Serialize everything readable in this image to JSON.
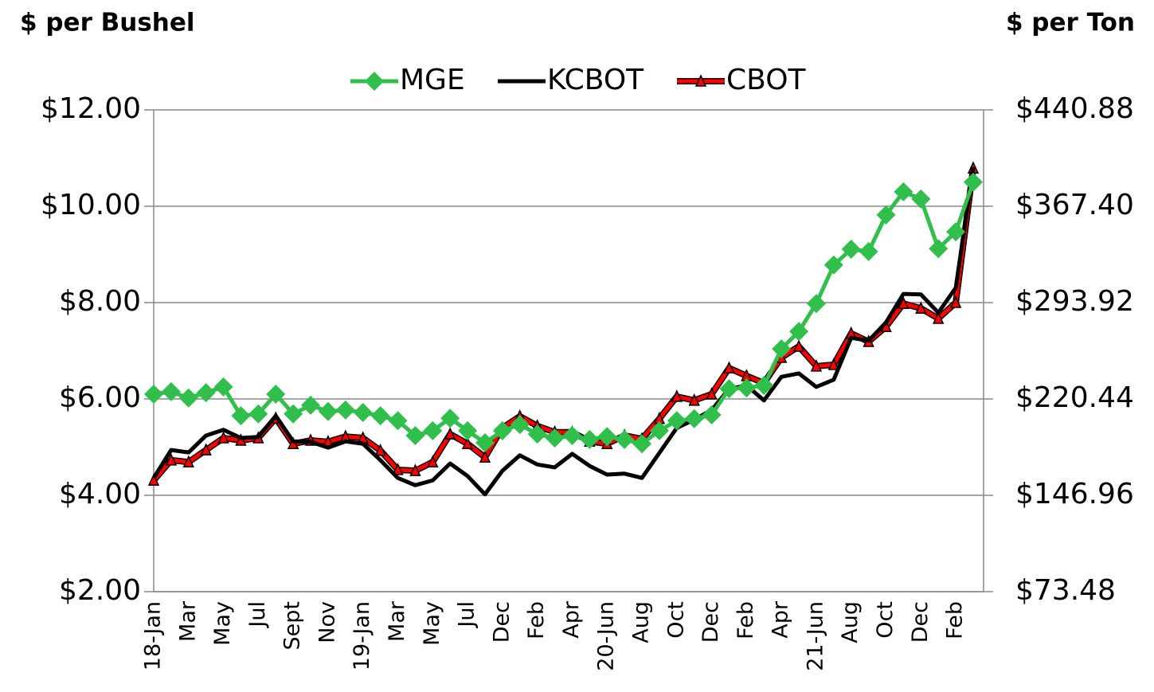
{
  "chart_data": {
    "type": "line",
    "y_label": "$ per Bushel",
    "y2_label": "$ per Ton",
    "categories": [
      "18-Jan",
      null,
      "Mar",
      null,
      "May",
      null,
      "Jul",
      null,
      "Sept",
      null,
      "Nov",
      null,
      "19-Jan",
      null,
      "Mar",
      null,
      "May",
      null,
      "Jul",
      null,
      "Dec",
      null,
      "Feb",
      null,
      "Apr",
      null,
      "20-Jun",
      null,
      "Aug",
      null,
      "Oct",
      null,
      "Dec",
      null,
      "Feb",
      null,
      "Apr",
      null,
      "21-Jun",
      null,
      "Aug",
      null,
      "Oct",
      null,
      "Dec",
      null,
      "Feb",
      null
    ],
    "series": [
      {
        "name": "MGE",
        "color": "#2fbf4a",
        "marker": "diamond",
        "values": [
          6.1,
          6.15,
          6.02,
          6.13,
          6.25,
          5.65,
          5.69,
          6.1,
          5.69,
          5.87,
          5.74,
          5.77,
          5.72,
          5.65,
          5.55,
          5.24,
          5.34,
          5.6,
          5.34,
          5.09,
          5.34,
          5.47,
          5.27,
          5.19,
          5.24,
          5.16,
          5.22,
          5.16,
          5.07,
          5.34,
          5.55,
          5.59,
          5.67,
          6.21,
          6.23,
          6.28,
          7.04,
          7.4,
          7.98,
          8.78,
          9.11,
          9.06,
          9.82,
          10.3,
          10.15,
          9.12,
          9.47,
          10.5
        ]
      },
      {
        "name": "KCBOT",
        "color": "#000000",
        "marker": "none",
        "values": [
          4.36,
          4.94,
          4.89,
          5.24,
          5.36,
          5.19,
          5.21,
          5.65,
          5.12,
          5.11,
          4.99,
          5.12,
          5.07,
          4.73,
          4.36,
          4.21,
          4.31,
          4.66,
          4.4,
          4.02,
          4.51,
          4.83,
          4.64,
          4.58,
          4.86,
          4.61,
          4.43,
          4.45,
          4.36,
          4.88,
          5.4,
          5.57,
          5.77,
          6.21,
          6.28,
          5.97,
          6.46,
          6.53,
          6.25,
          6.4,
          7.27,
          7.21,
          7.59,
          8.18,
          8.17,
          7.79,
          8.31,
          10.81
        ]
      },
      {
        "name": "CBOT",
        "color": "#ff0000",
        "marker": "triangle",
        "values": [
          4.31,
          4.73,
          4.69,
          4.94,
          5.19,
          5.14,
          5.19,
          5.6,
          5.07,
          5.14,
          5.11,
          5.22,
          5.19,
          4.93,
          4.53,
          4.51,
          4.69,
          5.27,
          5.07,
          4.79,
          5.4,
          5.64,
          5.44,
          5.31,
          5.31,
          5.12,
          5.07,
          5.24,
          5.17,
          5.59,
          6.05,
          5.97,
          6.1,
          6.64,
          6.48,
          6.33,
          6.86,
          7.09,
          6.68,
          6.71,
          7.36,
          7.19,
          7.5,
          7.98,
          7.88,
          7.67,
          8.0,
          10.79
        ]
      }
    ],
    "ylim": [
      2,
      12
    ],
    "yticks": [
      {
        "value": 2,
        "label": "$2.00"
      },
      {
        "value": 4,
        "label": "$4.00"
      },
      {
        "value": 6,
        "label": "$6.00"
      },
      {
        "value": 8,
        "label": "$8.00"
      },
      {
        "value": 10,
        "label": "$10.00"
      },
      {
        "value": 12,
        "label": "$12.00"
      }
    ],
    "y2lim": [
      73.48,
      440.88
    ],
    "y2ticks": [
      {
        "value": 73.48,
        "label": "$73.48"
      },
      {
        "value": 146.96,
        "label": "$146.96"
      },
      {
        "value": 220.44,
        "label": "$220.44"
      },
      {
        "value": 293.92,
        "label": "$293.92"
      },
      {
        "value": 367.4,
        "label": "$367.40"
      },
      {
        "value": 440.88,
        "label": "$440.88"
      }
    ],
    "grid": true,
    "legend": "top"
  }
}
